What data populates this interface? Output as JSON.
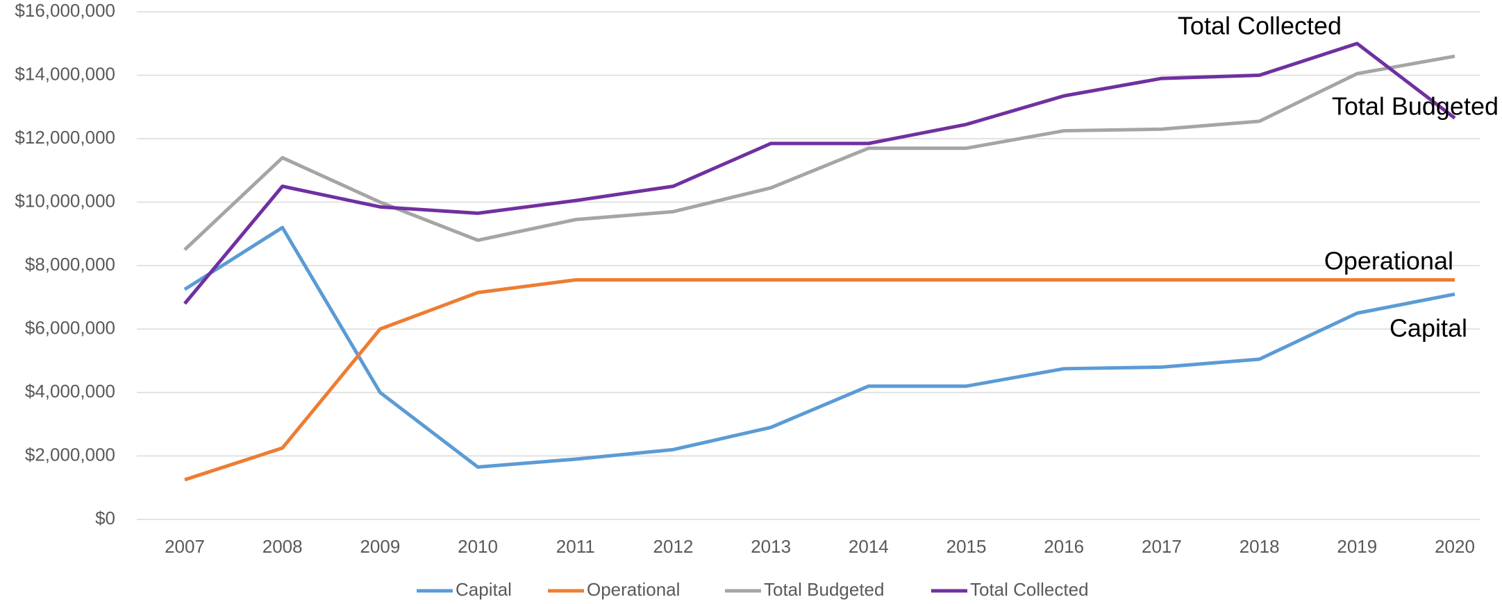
{
  "chart_data": {
    "type": "line",
    "categories": [
      "2007",
      "2008",
      "2009",
      "2010",
      "2011",
      "2012",
      "2013",
      "2014",
      "2015",
      "2016",
      "2017",
      "2018",
      "2019",
      "2020"
    ],
    "series": [
      {
        "name": "Capital",
        "color": "#5b9bd5",
        "values": [
          7250000,
          9200000,
          4000000,
          1650000,
          1900000,
          2200000,
          2900000,
          4200000,
          4200000,
          4750000,
          4800000,
          5050000,
          6500000,
          7100000
        ]
      },
      {
        "name": "Operational",
        "color": "#ed7d31",
        "values": [
          1250000,
          2250000,
          6000000,
          7150000,
          7550000,
          7550000,
          7550000,
          7550000,
          7550000,
          7550000,
          7550000,
          7550000,
          7550000,
          7550000
        ]
      },
      {
        "name": "Total Budgeted",
        "color": "#a5a5a5",
        "values": [
          8500000,
          11400000,
          10000000,
          8800000,
          9450000,
          9700000,
          10450000,
          11700000,
          11700000,
          12250000,
          12300000,
          12550000,
          14050000,
          14600000
        ]
      },
      {
        "name": "Total Collected",
        "color": "#7030a0",
        "values": [
          6800000,
          10500000,
          9850000,
          9650000,
          10050000,
          10500000,
          11850000,
          11850000,
          12450000,
          13350000,
          13900000,
          14000000,
          15000000,
          12650000
        ]
      }
    ],
    "annotations": [
      "Total Collected",
      "Total Budgeted",
      "Operational",
      "Capital"
    ],
    "ylim": [
      0,
      16000000
    ],
    "yticks": [
      {
        "value": 0,
        "label": "$0"
      },
      {
        "value": 2000000,
        "label": "$2,000,000"
      },
      {
        "value": 4000000,
        "label": "$4,000,000"
      },
      {
        "value": 6000000,
        "label": "$6,000,000"
      },
      {
        "value": 8000000,
        "label": "$8,000,000"
      },
      {
        "value": 10000000,
        "label": "$10,000,000"
      },
      {
        "value": 12000000,
        "label": "$12,000,000"
      },
      {
        "value": 14000000,
        "label": "$14,000,000"
      },
      {
        "value": 16000000,
        "label": "$16,000,000"
      }
    ],
    "grid": true,
    "legend": "bottom"
  }
}
